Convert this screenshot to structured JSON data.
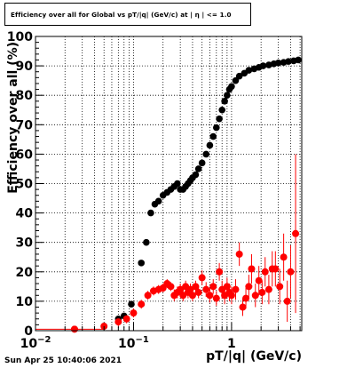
{
  "title": "Efficiency over all for Global vs pT/|q| (GeV/c) at |  η | <= 1.0",
  "timestamp": "Sun Apr 25 10:40:06 2021",
  "chart_data": {
    "type": "scatter",
    "title": "Efficiency over all for Global vs pT/|q| (GeV/c) at |  η | <= 1.0",
    "xlabel": "pT/|q| (GeV/c)",
    "ylabel": "Efficiency over all (%)",
    "xscale": "log",
    "xlim": [
      0.01,
      5.2
    ],
    "ylim": [
      0,
      100
    ],
    "grid": true,
    "x_tick_labels": [
      {
        "value": 0.01,
        "base": "10",
        "exp": "−2"
      },
      {
        "value": 0.1,
        "base": "10",
        "exp": "−1"
      },
      {
        "value": 1,
        "base": "1",
        "exp": ""
      }
    ],
    "y_tick_labels": [
      "0",
      "10",
      "20",
      "30",
      "40",
      "50",
      "60",
      "70",
      "80",
      "90",
      "100"
    ],
    "y_ticks": [
      0,
      10,
      20,
      30,
      40,
      50,
      60,
      70,
      80,
      90,
      100
    ],
    "series": [
      {
        "color": "#000000",
        "points": [
          [
            0.025,
            0.5
          ],
          [
            0.05,
            1.5
          ],
          [
            0.07,
            4
          ],
          [
            0.08,
            5
          ],
          [
            0.095,
            9
          ],
          [
            0.12,
            23
          ],
          [
            0.135,
            30
          ],
          [
            0.15,
            40
          ],
          [
            0.165,
            43
          ],
          [
            0.18,
            44
          ],
          [
            0.2,
            46
          ],
          [
            0.22,
            47
          ],
          [
            0.24,
            48
          ],
          [
            0.26,
            49
          ],
          [
            0.28,
            50
          ],
          [
            0.3,
            48
          ],
          [
            0.32,
            48
          ],
          [
            0.34,
            49
          ],
          [
            0.36,
            50
          ],
          [
            0.38,
            51
          ],
          [
            0.4,
            52
          ],
          [
            0.43,
            53
          ],
          [
            0.46,
            55
          ],
          [
            0.5,
            57
          ],
          [
            0.55,
            60
          ],
          [
            0.6,
            63
          ],
          [
            0.65,
            66
          ],
          [
            0.7,
            69
          ],
          [
            0.75,
            72
          ],
          [
            0.8,
            75
          ],
          [
            0.85,
            78
          ],
          [
            0.9,
            80
          ],
          [
            0.95,
            82
          ],
          [
            1.0,
            83
          ],
          [
            1.1,
            85
          ],
          [
            1.2,
            86.5
          ],
          [
            1.35,
            87.5
          ],
          [
            1.5,
            88.5
          ],
          [
            1.7,
            89
          ],
          [
            1.9,
            89.5
          ],
          [
            2.1,
            90
          ],
          [
            2.4,
            90.3
          ],
          [
            2.7,
            90.7
          ],
          [
            3.0,
            91
          ],
          [
            3.4,
            91.2
          ],
          [
            3.8,
            91.5
          ],
          [
            4.3,
            91.7
          ],
          [
            4.8,
            92
          ]
        ]
      },
      {
        "color": "#ff0000",
        "points": [
          [
            0.025,
            0.5,
            0.5
          ],
          [
            0.05,
            1.5,
            0.8
          ],
          [
            0.07,
            3,
            1.5
          ],
          [
            0.085,
            4,
            1.5
          ],
          [
            0.1,
            6,
            1.5
          ],
          [
            0.12,
            9,
            1.5
          ],
          [
            0.14,
            12,
            1.5
          ],
          [
            0.16,
            13.5,
            1.5
          ],
          [
            0.18,
            14,
            1.5
          ],
          [
            0.2,
            14.5,
            1.5
          ],
          [
            0.22,
            16,
            1.5
          ],
          [
            0.24,
            15,
            1.5
          ],
          [
            0.26,
            12,
            2
          ],
          [
            0.28,
            13,
            2
          ],
          [
            0.3,
            14,
            2
          ],
          [
            0.32,
            12,
            2
          ],
          [
            0.34,
            15,
            2
          ],
          [
            0.36,
            13,
            2
          ],
          [
            0.38,
            14,
            2
          ],
          [
            0.4,
            12,
            2
          ],
          [
            0.43,
            15,
            2
          ],
          [
            0.46,
            13,
            2
          ],
          [
            0.5,
            18,
            2.5
          ],
          [
            0.55,
            14,
            2.5
          ],
          [
            0.6,
            12,
            2.5
          ],
          [
            0.65,
            15,
            2.5
          ],
          [
            0.7,
            11,
            2.5
          ],
          [
            0.75,
            20,
            3
          ],
          [
            0.8,
            14,
            3
          ],
          [
            0.85,
            12,
            3
          ],
          [
            0.9,
            15,
            3
          ],
          [
            0.95,
            13,
            3
          ],
          [
            1.0,
            12,
            3
          ],
          [
            1.1,
            14,
            3.5
          ],
          [
            1.2,
            26,
            4
          ],
          [
            1.3,
            8,
            3
          ],
          [
            1.4,
            11,
            3.5
          ],
          [
            1.5,
            15,
            4
          ],
          [
            1.6,
            21,
            5
          ],
          [
            1.75,
            12,
            4
          ],
          [
            1.9,
            17,
            5
          ],
          [
            2.05,
            13,
            4
          ],
          [
            2.2,
            20,
            5
          ],
          [
            2.4,
            14,
            5
          ],
          [
            2.6,
            21,
            6
          ],
          [
            2.8,
            21,
            6
          ],
          [
            3.1,
            15,
            6
          ],
          [
            3.4,
            25,
            8
          ],
          [
            3.7,
            10,
            7
          ],
          [
            4.0,
            20,
            9
          ],
          [
            4.5,
            33,
            27
          ]
        ]
      }
    ]
  }
}
